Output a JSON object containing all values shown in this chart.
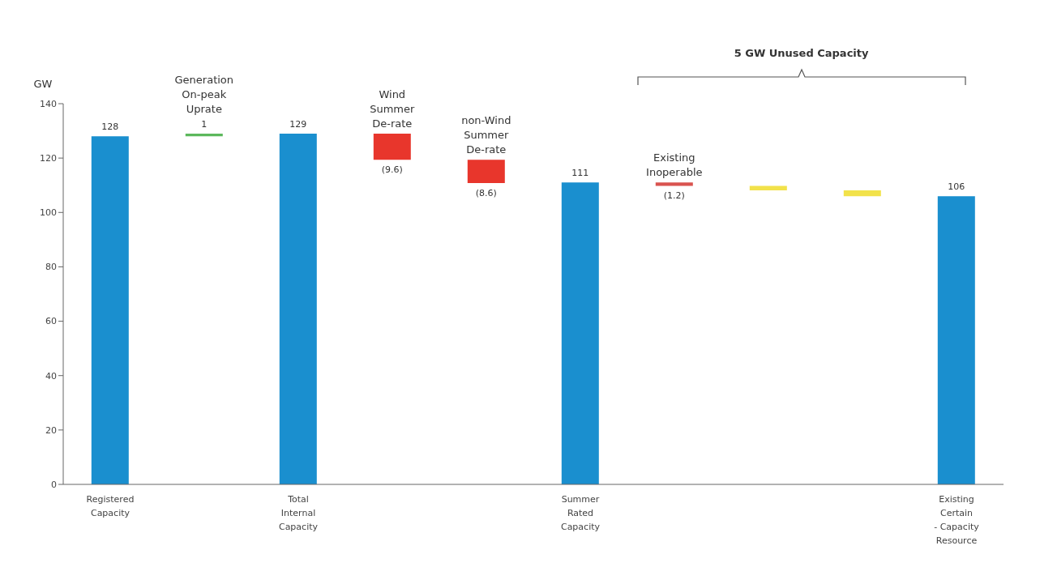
{
  "chart_data": {
    "type": "bar",
    "ylabel": "GW",
    "categories": [
      "Registered Capacity",
      "Generation On-peak Uprate",
      "Total Internal Capacity",
      "Wind Summer De-rate",
      "non-Wind Summer De-rate",
      "Summer Rated Capacity",
      "Existing Inoperable",
      null,
      null,
      "Existing Certain - Capacity Resource"
    ],
    "values": [
      128,
      1,
      129,
      -9.6,
      -8.6,
      111,
      -1.2,
      -1.7,
      -2.1,
      106
    ],
    "base": [
      0,
      128,
      0,
      129,
      119.4,
      0,
      111,
      109.8,
      108.1,
      0
    ],
    "colors": [
      "#1a8fcf",
      "#5cb85c",
      "#1a8fcf",
      "#e8362c",
      "#e8362c",
      "#1a8fcf",
      "#d9534f",
      "#f2e24a",
      "#f2e24a",
      "#1a8fcf"
    ],
    "value_labels": [
      "128",
      "1",
      "129",
      "(9.6)",
      "(8.6)",
      "111",
      "(1.2)",
      null,
      null,
      "106"
    ],
    "ylim": [
      0,
      140
    ],
    "yticks": [
      0,
      20,
      40,
      60,
      80,
      100,
      120,
      140
    ],
    "grid": false,
    "annotations": [
      "5 GW Unused Capacity"
    ]
  }
}
